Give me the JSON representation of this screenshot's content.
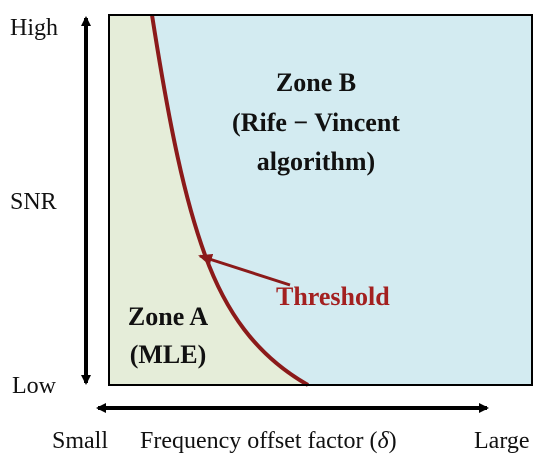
{
  "y_axis": {
    "label": "SNR",
    "high_label": "High",
    "low_label": "Low"
  },
  "x_axis": {
    "label": "Frequency offset factor (",
    "symbol": "δ",
    "label_close": ")",
    "small_label": "Small",
    "large_label": "Large"
  },
  "zone_a": {
    "line1": "Zone A",
    "line2": "(MLE)"
  },
  "zone_b": {
    "line1": "Zone B",
    "line2": "(Rife − Vincent",
    "line3": "algorithm)"
  },
  "threshold": {
    "label": "Threshold"
  },
  "colors": {
    "zone_a_fill": "#e5edd9",
    "zone_b_fill": "#d3ebf1",
    "threshold_curve": "#8b1a1a",
    "threshold_text": "#a32020",
    "axis": "#000000"
  }
}
